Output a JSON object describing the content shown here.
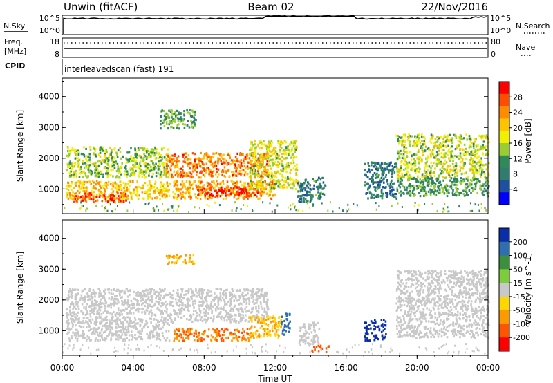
{
  "header": {
    "title": "Unwin (fitACF)",
    "beam": "Beam 02",
    "date": "22/Nov/2016"
  },
  "top_panels": {
    "nsky": {
      "label": "N.Sky",
      "ticks": [
        "10^5",
        "10^0"
      ]
    },
    "nsearch": {
      "label": "N.Search",
      "ticks": [
        "10^5",
        "10^0"
      ]
    },
    "freq": {
      "label_line1": "Freq.",
      "label_line2": "[MHz]",
      "ticks": [
        "18",
        "8"
      ]
    },
    "nave": {
      "label": "Nave",
      "ticks": [
        "80",
        "0"
      ]
    },
    "cpid": {
      "label": "CPID",
      "value": "interleavedscan (fast) 191"
    }
  },
  "power_colorbar": {
    "label": "Power [dB]",
    "ticks": [
      "28",
      "24",
      "20",
      "16",
      "12",
      "8",
      "4"
    ],
    "colors": [
      "#ff0000",
      "#ff4d00",
      "#ff8c00",
      "#ffc400",
      "#f0f000",
      "#9acd32",
      "#2e8b57",
      "#2e7d6e",
      "#1f4fa0",
      "#0000ff"
    ]
  },
  "velocity_colorbar": {
    "label": "Velocity [m s^-1]",
    "ticks": [
      "200",
      "100",
      "50",
      "15",
      "-15",
      "-50",
      "-100",
      "-200"
    ],
    "colors": [
      "#0a2ea8",
      "#2f6fb0",
      "#3c8f3c",
      "#7ccd3c",
      "#c8c8c8",
      "#ffd700",
      "#ff9900",
      "#ff5500",
      "#ff0000"
    ]
  },
  "x_axis": {
    "title": "Time UT",
    "ticks": [
      "00:00",
      "04:00",
      "08:00",
      "12:00",
      "16:00",
      "20:00",
      "00:00"
    ]
  },
  "y_axis": {
    "title": "Slant Range [km]",
    "ticks": [
      "1000",
      "2000",
      "3000",
      "4000"
    ]
  },
  "chart_data": [
    {
      "type": "heatmap",
      "name_shown": "Power",
      "x_unit": "hours UT",
      "xlim": [
        0,
        24
      ],
      "ylim": [
        200,
        4600
      ],
      "zlim": [
        0,
        30
      ],
      "scatter_regions": [
        {
          "x": [
            0.2,
            6.0
          ],
          "y": [
            1400,
            2400
          ],
          "power": 14
        },
        {
          "x": [
            0.2,
            6.0
          ],
          "y": [
            700,
            1300
          ],
          "power": 20
        },
        {
          "x": [
            0.6,
            3.8
          ],
          "y": [
            600,
            900
          ],
          "power": 27
        },
        {
          "x": [
            5.8,
            11.6
          ],
          "y": [
            1400,
            2200
          ],
          "power": 24
        },
        {
          "x": [
            6.2,
            12.0
          ],
          "y": [
            700,
            1300
          ],
          "power": 22
        },
        {
          "x": [
            7.6,
            11.0
          ],
          "y": [
            800,
            1100
          ],
          "power": 29
        },
        {
          "x": [
            10.5,
            13.2
          ],
          "y": [
            1000,
            2600
          ],
          "power": 16
        },
        {
          "x": [
            13.2,
            14.8
          ],
          "y": [
            600,
            1400
          ],
          "power": 8
        },
        {
          "x": [
            5.5,
            7.5
          ],
          "y": [
            3000,
            3600
          ],
          "power": 10
        },
        {
          "x": [
            17.0,
            18.8
          ],
          "y": [
            700,
            1900
          ],
          "power": 7
        },
        {
          "x": [
            18.8,
            24.0
          ],
          "y": [
            1400,
            2800
          ],
          "power": 15
        },
        {
          "x": [
            18.8,
            24.0
          ],
          "y": [
            800,
            1400
          ],
          "power": 10
        }
      ]
    },
    {
      "type": "heatmap",
      "name_shown": "Velocity",
      "x_unit": "hours UT",
      "xlim": [
        0,
        24
      ],
      "ylim": [
        200,
        4600
      ],
      "zlim": [
        -250,
        250
      ],
      "scatter_regions": [
        {
          "x": [
            0.2,
            11.6
          ],
          "y": [
            1300,
            2400
          ],
          "velocity": 0
        },
        {
          "x": [
            0.2,
            6.0
          ],
          "y": [
            700,
            1300
          ],
          "velocity": 0
        },
        {
          "x": [
            6.2,
            10.5
          ],
          "y": [
            700,
            1100
          ],
          "velocity": -100
        },
        {
          "x": [
            10.5,
            12.3
          ],
          "y": [
            800,
            1500
          ],
          "velocity": -50
        },
        {
          "x": [
            12.3,
            12.8
          ],
          "y": [
            900,
            1600
          ],
          "velocity": 150
        },
        {
          "x": [
            13.3,
            14.5
          ],
          "y": [
            600,
            1300
          ],
          "velocity": 0
        },
        {
          "x": [
            14.0,
            15.0
          ],
          "y": [
            350,
            550
          ],
          "velocity": -120
        },
        {
          "x": [
            5.8,
            7.4
          ],
          "y": [
            3200,
            3500
          ],
          "velocity": -60
        },
        {
          "x": [
            17.0,
            18.2
          ],
          "y": [
            700,
            1400
          ],
          "velocity": 220
        },
        {
          "x": [
            18.8,
            24.0
          ],
          "y": [
            800,
            3000
          ],
          "velocity": 0
        }
      ]
    }
  ]
}
